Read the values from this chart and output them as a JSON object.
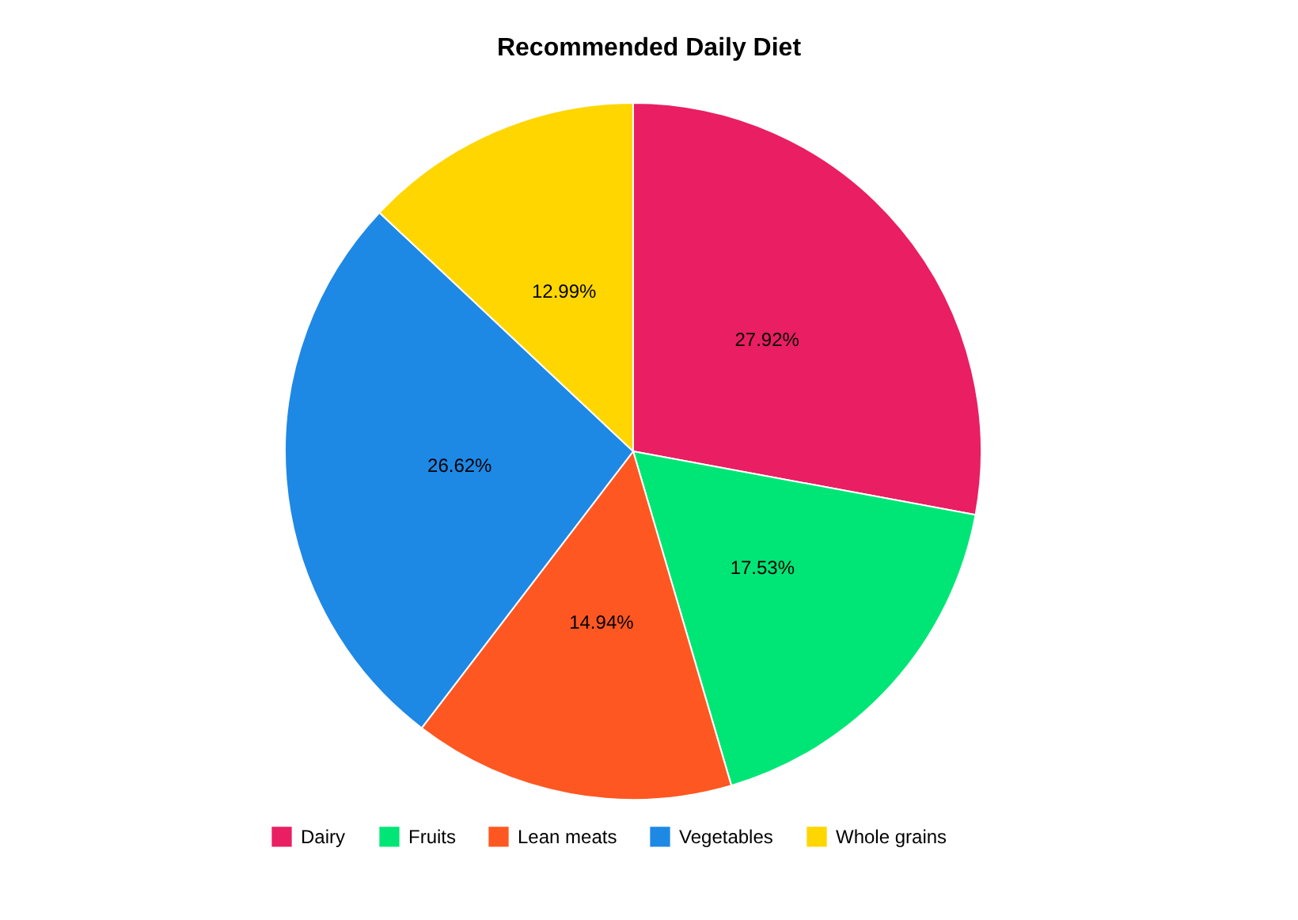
{
  "chart_data": {
    "type": "pie",
    "title": "Recommended Daily Diet",
    "categories": [
      "Dairy",
      "Fruits",
      "Lean meats",
      "Vegetables",
      "Whole grains"
    ],
    "values": [
      27.92,
      17.53,
      14.94,
      26.62,
      12.99
    ],
    "colors": [
      "#e91e63",
      "#00e676",
      "#ff5722",
      "#1e88e5",
      "#ffd600"
    ],
    "value_labels": [
      "27.92%",
      "17.53%",
      "14.94%",
      "26.62%",
      "12.99%"
    ],
    "legend": "bottom"
  }
}
